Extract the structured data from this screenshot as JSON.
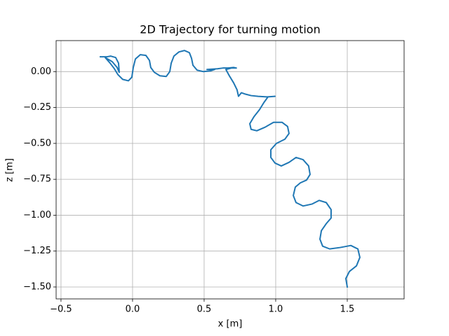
{
  "chart_data": {
    "type": "line",
    "title": "2D Trajectory for turning motion",
    "xlabel": "x [m]",
    "ylabel": "z [m]",
    "color": "#1f77b4",
    "grid": true,
    "xlim": [
      -0.534,
      1.897
    ],
    "ylim": [
      -1.583,
      0.216
    ],
    "xticks": [
      {
        "value": -0.5,
        "label": "−0.5"
      },
      {
        "value": 0,
        "label": "0.0"
      },
      {
        "value": 0.5,
        "label": "0.5"
      },
      {
        "value": 1,
        "label": "1.0"
      },
      {
        "value": 1.5,
        "label": "1.5"
      }
    ],
    "yticks": [
      {
        "value": 0,
        "label": "0.00"
      },
      {
        "value": -0.25,
        "label": "−0.25"
      },
      {
        "value": -0.5,
        "label": "−0.50"
      },
      {
        "value": -0.75,
        "label": "−0.75"
      },
      {
        "value": -1,
        "label": "−1.00"
      },
      {
        "value": -1.25,
        "label": "−1.25"
      },
      {
        "value": -1.5,
        "label": "−1.50"
      }
    ],
    "x": [
      -0.225,
      -0.181,
      -0.152,
      -0.118,
      -0.098,
      -0.093,
      -0.108,
      -0.142,
      -0.191,
      -0.157,
      -0.127,
      -0.103,
      -0.069,
      -0.029,
      -0.005,
      0.005,
      0.02,
      0.054,
      0.093,
      0.118,
      0.127,
      0.152,
      0.191,
      0.235,
      0.26,
      0.27,
      0.289,
      0.324,
      0.363,
      0.397,
      0.412,
      0.422,
      0.451,
      0.495,
      0.544,
      0.574,
      0.52,
      0.593,
      0.632,
      0.667,
      0.706,
      0.725,
      0.691,
      0.652,
      0.676,
      0.706,
      0.73,
      0.74,
      0.76,
      0.789,
      0.828,
      0.877,
      0.936,
      0.995,
      0.946,
      0.917,
      0.887,
      0.848,
      0.819,
      0.828,
      0.868,
      0.926,
      0.985,
      1.044,
      1.083,
      1.093,
      1.064,
      1.005,
      0.966,
      0.966,
      0.995,
      1.039,
      1.093,
      1.142,
      1.191,
      1.23,
      1.24,
      1.216,
      1.172,
      1.137,
      1.123,
      1.142,
      1.191,
      1.255,
      1.304,
      1.353,
      1.387,
      1.387,
      1.353,
      1.319,
      1.309,
      1.328,
      1.377,
      1.451,
      1.525,
      1.574,
      1.588,
      1.564,
      1.515,
      1.49,
      1.5
    ],
    "values": [
      0.103,
      0.103,
      0.108,
      0.098,
      0.059,
      -0.005,
      0.029,
      0.069,
      0.098,
      0.059,
      0.02,
      -0.02,
      -0.054,
      -0.064,
      -0.039,
      0.029,
      0.088,
      0.118,
      0.113,
      0.078,
      0.029,
      -0.005,
      -0.029,
      -0.034,
      0,
      0.059,
      0.108,
      0.137,
      0.147,
      0.132,
      0.093,
      0.044,
      0.01,
      0,
      0.005,
      0.015,
      0.015,
      0.02,
      0.025,
      0.025,
      0.029,
      0.025,
      0.025,
      0.015,
      -0.029,
      -0.078,
      -0.127,
      -0.172,
      -0.147,
      -0.157,
      -0.167,
      -0.172,
      -0.176,
      -0.172,
      -0.176,
      -0.216,
      -0.265,
      -0.314,
      -0.363,
      -0.402,
      -0.412,
      -0.387,
      -0.353,
      -0.353,
      -0.382,
      -0.431,
      -0.471,
      -0.5,
      -0.544,
      -0.598,
      -0.637,
      -0.657,
      -0.632,
      -0.598,
      -0.613,
      -0.657,
      -0.716,
      -0.755,
      -0.775,
      -0.804,
      -0.863,
      -0.912,
      -0.936,
      -0.922,
      -0.897,
      -0.912,
      -0.961,
      -1.02,
      -1.059,
      -1.108,
      -1.167,
      -1.216,
      -1.235,
      -1.225,
      -1.211,
      -1.235,
      -1.294,
      -1.353,
      -1.392,
      -1.441,
      -1.5
    ]
  }
}
